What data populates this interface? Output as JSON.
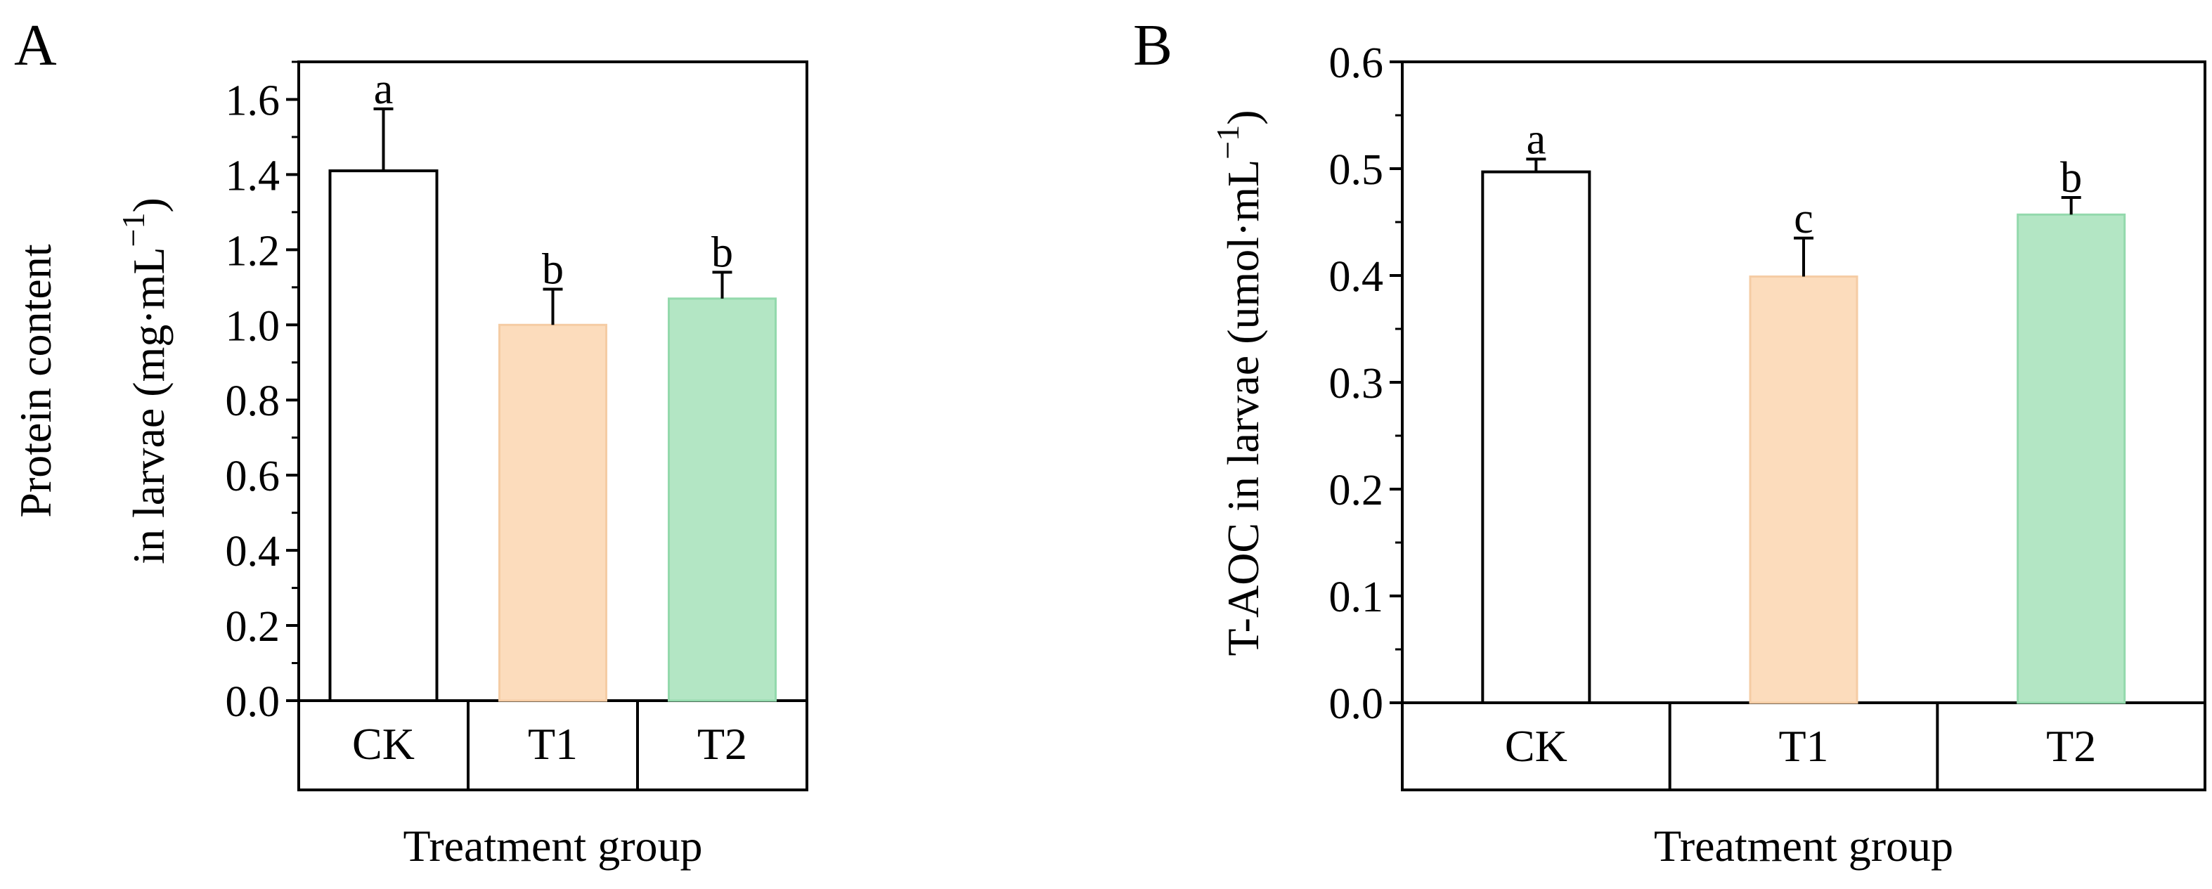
{
  "chart_data": [
    {
      "type": "bar",
      "panel": "A",
      "categories": [
        "CK",
        "T1",
        "T2"
      ],
      "values": [
        1.41,
        1.0,
        1.07
      ],
      "errors": [
        0.165,
        0.095,
        0.07
      ],
      "significance": [
        "a",
        "b",
        "b"
      ],
      "colors": [
        "#ffffff",
        "#fcdcbc",
        "#b3e6c4"
      ],
      "edge_colors": [
        "#000000",
        "#f5cca4",
        "#93d9ac"
      ],
      "ylabel_line1": "Protein content",
      "ylabel_line2_main": "in larvae (mg·mL",
      "ylabel_sup": "−1",
      "ylabel_close": ")",
      "xlabel": "Treatment group",
      "ylim": [
        0,
        1.7
      ],
      "yticks": [
        0.0,
        0.2,
        0.4,
        0.6,
        0.8,
        1.0,
        1.2,
        1.4,
        1.6
      ],
      "ytick_labels": [
        "0.0",
        "0.2",
        "0.4",
        "0.6",
        "0.8",
        "1.0",
        "1.2",
        "1.4",
        "1.6"
      ],
      "minor_step": 0.1
    },
    {
      "type": "bar",
      "panel": "B",
      "categories": [
        "CK",
        "T1",
        "T2"
      ],
      "values": [
        0.497,
        0.399,
        0.457
      ],
      "errors": [
        0.012,
        0.036,
        0.016
      ],
      "significance": [
        "a",
        "c",
        "b"
      ],
      "colors": [
        "#ffffff",
        "#fcdcbc",
        "#b3e6c4"
      ],
      "edge_colors": [
        "#000000",
        "#f5cca4",
        "#93d9ac"
      ],
      "ylabel_line1": "",
      "ylabel_line2_main": "T-AOC in larvae (umol·mL",
      "ylabel_sup": "−1",
      "ylabel_close": ")",
      "xlabel": "Treatment group",
      "ylim": [
        0,
        0.6
      ],
      "yticks": [
        0.0,
        0.1,
        0.2,
        0.3,
        0.4,
        0.5,
        0.6
      ],
      "ytick_labels": [
        "0.0",
        "0.1",
        "0.2",
        "0.3",
        "0.4",
        "0.5",
        "0.6"
      ],
      "minor_step": 0.05
    }
  ]
}
